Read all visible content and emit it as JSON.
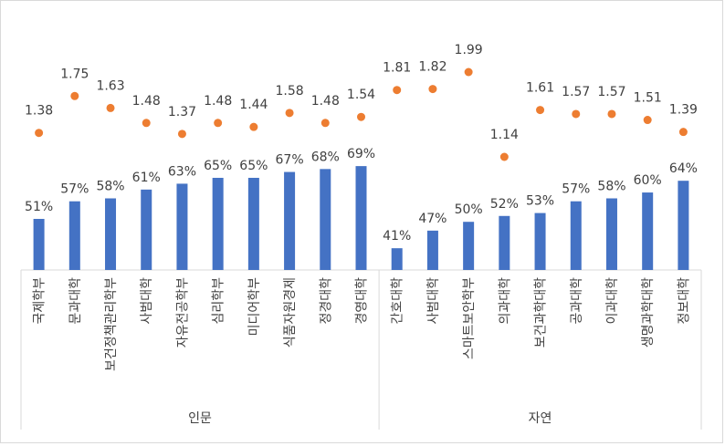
{
  "chart_data": {
    "type": "bar",
    "title": "",
    "xlabel": "",
    "ylabel": "",
    "grid": false,
    "groups": [
      {
        "name": "인문",
        "categories": [
          "국제학부",
          "문과대학",
          "보건정책관리학부",
          "사범대학",
          "자유전공학부",
          "심리학부",
          "미디어학부",
          "식품자원경제",
          "정경대학",
          "경영대학"
        ],
        "bar_values": [
          51,
          57,
          58,
          61,
          63,
          65,
          65,
          67,
          68,
          69
        ],
        "bar_labels": [
          "51%",
          "57%",
          "58%",
          "61%",
          "63%",
          "65%",
          "65%",
          "67%",
          "68%",
          "69%"
        ],
        "dot_values": [
          1.38,
          1.75,
          1.63,
          1.48,
          1.37,
          1.48,
          1.44,
          1.58,
          1.48,
          1.54
        ],
        "dot_labels": [
          "1.38",
          "1.75",
          "1.63",
          "1.48",
          "1.37",
          "1.48",
          "1.44",
          "1.58",
          "1.48",
          "1.54"
        ]
      },
      {
        "name": "자연",
        "categories": [
          "간호대학",
          "사범대학",
          "스마트보안학부",
          "의과대학",
          "보건과학대학",
          "공과대학",
          "이과대학",
          "생명과학대학",
          "정보대학"
        ],
        "bar_values": [
          41,
          47,
          50,
          52,
          53,
          57,
          58,
          60,
          64
        ],
        "bar_labels": [
          "41%",
          "47%",
          "50%",
          "52%",
          "53%",
          "57%",
          "58%",
          "60%",
          "64%"
        ],
        "dot_values": [
          1.81,
          1.82,
          1.99,
          1.14,
          1.61,
          1.57,
          1.57,
          1.51,
          1.39
        ],
        "dot_labels": [
          "1.81",
          "1.82",
          "1.99",
          "1.14",
          "1.61",
          "1.57",
          "1.57",
          "1.51",
          "1.39"
        ]
      }
    ],
    "series": [
      {
        "kind": "bar",
        "color": "#4472c4",
        "unit": "percent"
      },
      {
        "kind": "scatter",
        "color": "#ed7d31"
      }
    ],
    "bar_range": [
      0,
      100
    ],
    "dot_range": [
      1.0,
      2.1
    ]
  }
}
